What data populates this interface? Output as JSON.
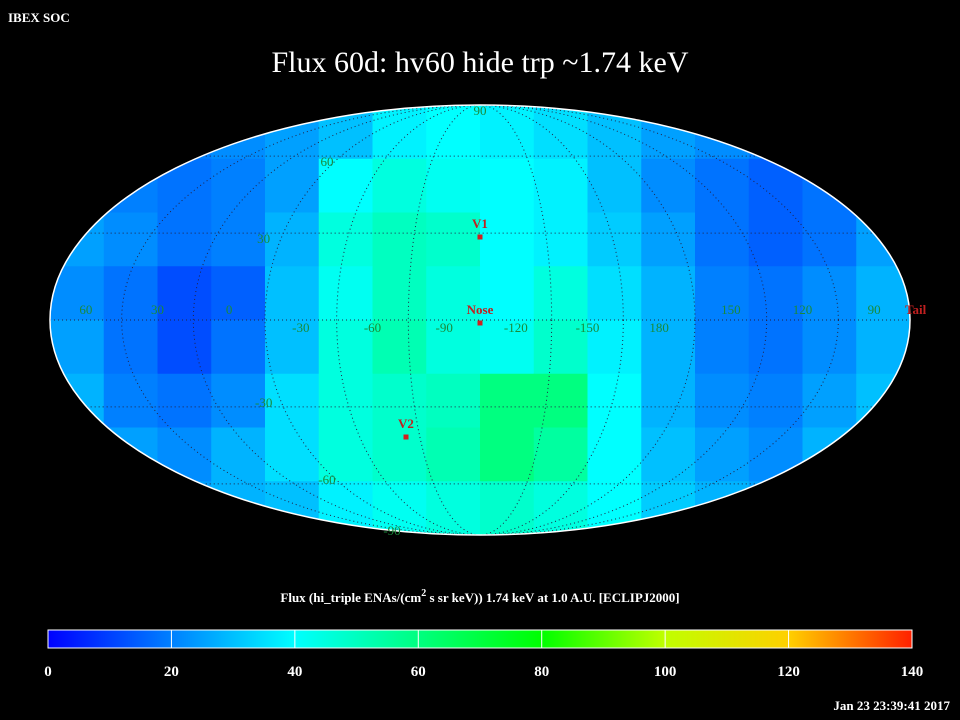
{
  "header": {
    "label": "IBEX SOC",
    "timestamp": "Jan 23 23:39:41 2017"
  },
  "chart_data": {
    "type": "skymap",
    "projection": "mollweide",
    "title": "Flux   60d: hv60 hide trp ~1.74 keV",
    "grid": true,
    "lon_labels": [
      60,
      30,
      0,
      -30,
      -60,
      -90,
      -120,
      -150,
      180,
      150,
      120,
      90
    ],
    "lat_labels": [
      90,
      60,
      30,
      -30,
      -60,
      -90
    ],
    "markers": [
      "V1",
      "Nose",
      "V2",
      "Tail"
    ],
    "cells": [
      [
        20,
        20,
        20,
        22,
        25,
        30,
        38,
        40,
        38,
        35,
        30,
        25,
        22,
        20,
        20,
        20
      ],
      [
        22,
        20,
        18,
        20,
        25,
        40,
        45,
        42,
        40,
        38,
        30,
        22,
        18,
        15,
        18,
        22
      ],
      [
        25,
        22,
        18,
        20,
        28,
        45,
        50,
        48,
        40,
        38,
        32,
        25,
        18,
        15,
        18,
        25
      ],
      [
        22,
        18,
        12,
        15,
        30,
        42,
        50,
        45,
        40,
        45,
        35,
        28,
        20,
        18,
        22,
        28
      ],
      [
        25,
        18,
        12,
        18,
        30,
        45,
        52,
        45,
        42,
        48,
        38,
        28,
        20,
        18,
        22,
        28
      ],
      [
        28,
        20,
        18,
        22,
        35,
        45,
        48,
        50,
        60,
        60,
        40,
        28,
        22,
        20,
        25,
        30
      ],
      [
        30,
        25,
        22,
        28,
        35,
        45,
        48,
        52,
        60,
        55,
        40,
        30,
        25,
        22,
        28,
        30
      ],
      [
        30,
        28,
        25,
        28,
        30,
        38,
        42,
        45,
        48,
        45,
        40,
        32,
        28,
        25,
        28,
        30
      ]
    ],
    "colorbar": {
      "caption_pre": "Flux (hi_triple ENAs/(cm",
      "caption_sup": "2",
      "caption_post": " s sr keV))  1.74 keV at 1.0 A.U. [ECLIPJ2000]",
      "lim": [
        0,
        140
      ],
      "ticks": [
        0,
        20,
        40,
        60,
        80,
        100,
        120,
        140
      ],
      "colors": [
        "#0000ff",
        "#0080ff",
        "#00ffff",
        "#00ff80",
        "#00ff00",
        "#c0ff00",
        "#ffd000",
        "#ff2000"
      ]
    }
  }
}
